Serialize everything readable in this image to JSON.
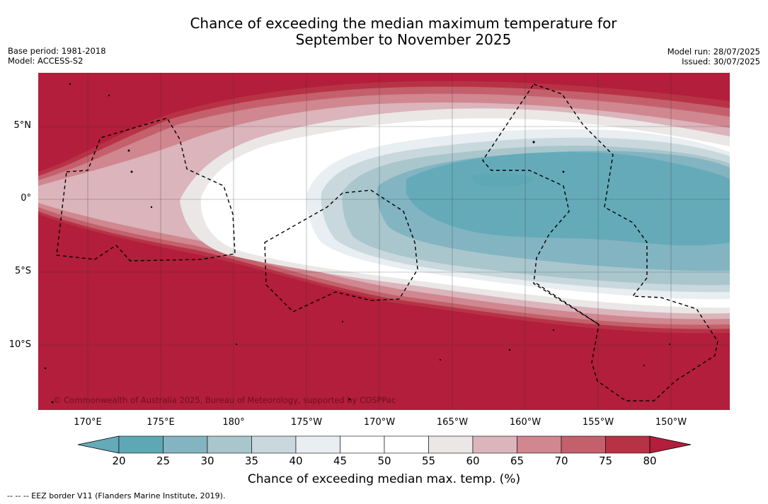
{
  "title_line1": "Chance of exceeding the median maximum temperature for",
  "title_line2": "September to November 2025",
  "meta_left": {
    "base_period": "Base period: 1981-2018",
    "model": "Model: ACCESS-S2"
  },
  "meta_right": {
    "model_run": "Model run: 28/07/2025",
    "issued": "Issued: 30/07/2025"
  },
  "lat_labels": [
    "5°N",
    "0°",
    "5°S",
    "10°S"
  ],
  "lon_labels": [
    "170°E",
    "175°E",
    "180°",
    "175°W",
    "170°W",
    "165°W",
    "160°W",
    "155°W",
    "150°W"
  ],
  "copyright": "© Commonwealth of Australia 2025, Bureau of Meteorology, supported by COSPPac",
  "colorbar": {
    "ticks": [
      "20",
      "25",
      "30",
      "35",
      "40",
      "45",
      "50",
      "55",
      "60",
      "65",
      "70",
      "75",
      "80"
    ],
    "colors": [
      "#65aab8",
      "#5ea8b6",
      "#83b4c1",
      "#a9c6cd",
      "#c8d8dd",
      "#e8eef1",
      "#ffffff",
      "#ffffff",
      "#ebe7e7",
      "#dcb4bb",
      "#d0878f",
      "#c4606c",
      "#b83246",
      "#b21e3b"
    ],
    "label": "Chance of exceeding median max. temp. (%)"
  },
  "footnote": "--  --  -- EEZ border V11 (Flanders Marine Institute, 2019)."
}
